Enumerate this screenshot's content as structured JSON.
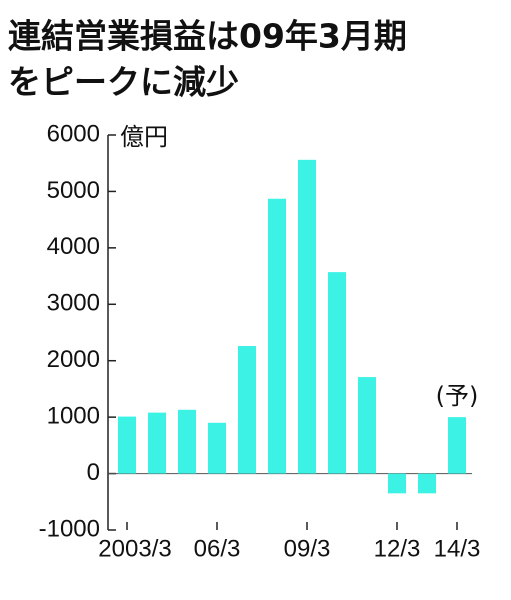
{
  "chart_data": {
    "type": "bar",
    "title": [
      "連結営業損益は09年3月期",
      "をピークに減少"
    ],
    "unit": "億円",
    "annotation": "(予)",
    "categories": [
      "2003/3",
      null,
      null,
      "06/3",
      null,
      null,
      "09/3",
      null,
      null,
      "12/3",
      null,
      "14/3"
    ],
    "values": [
      1010,
      1080,
      1130,
      900,
      2260,
      4870,
      5560,
      3570,
      1710,
      -350,
      -350,
      1000
    ],
    "color": "#3cf2e4",
    "ylim": [
      -1000,
      6000
    ],
    "yticks": [
      -1000,
      0,
      1000,
      2000,
      3000,
      4000,
      5000,
      6000
    ]
  }
}
